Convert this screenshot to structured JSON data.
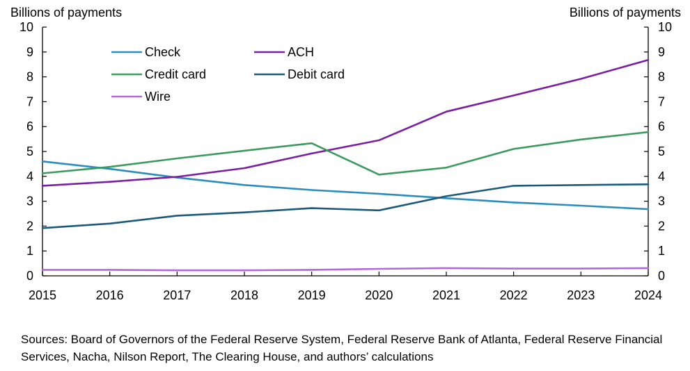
{
  "chart_data": {
    "type": "line",
    "title": "",
    "ylabel_left": "Billions of payments",
    "ylabel_right": "Billions of payments",
    "xlabel": "",
    "x": [
      "2015",
      "2016",
      "2017",
      "2018",
      "2019",
      "2020",
      "2021",
      "2022",
      "2023",
      "2024"
    ],
    "ylim": [
      0,
      10
    ],
    "yticks": [
      "0",
      "1",
      "2",
      "3",
      "4",
      "5",
      "6",
      "7",
      "8",
      "9",
      "10"
    ],
    "grid": false,
    "legend_position": "top-left",
    "series": [
      {
        "name": "Check",
        "color": "#2B8CBE",
        "values": [
          4.6,
          4.3,
          3.95,
          3.65,
          3.45,
          3.3,
          3.12,
          2.95,
          2.82,
          2.68
        ]
      },
      {
        "name": "ACH",
        "color": "#7A1FA2",
        "values": [
          3.62,
          3.78,
          3.98,
          4.33,
          4.92,
          5.45,
          6.6,
          7.25,
          7.92,
          8.68
        ]
      },
      {
        "name": "Credit card",
        "color": "#3C9A5F",
        "values": [
          4.12,
          4.38,
          4.72,
          5.03,
          5.33,
          4.07,
          4.35,
          5.1,
          5.48,
          5.78
        ]
      },
      {
        "name": "Debit card",
        "color": "#1C5A7A",
        "values": [
          1.92,
          2.1,
          2.42,
          2.55,
          2.72,
          2.63,
          3.2,
          3.62,
          3.65,
          3.68
        ]
      },
      {
        "name": "Wire",
        "color": "#B266E0",
        "values": [
          0.24,
          0.24,
          0.22,
          0.22,
          0.24,
          0.28,
          0.31,
          0.29,
          0.29,
          0.31
        ]
      }
    ]
  },
  "source_text": "Sources: Board of Governors of the Federal Reserve System, Federal Reserve Bank of Atlanta, Federal Reserve Financial Services, Nacha, Nilson Report, The Clearing House, and authors’ calculations"
}
